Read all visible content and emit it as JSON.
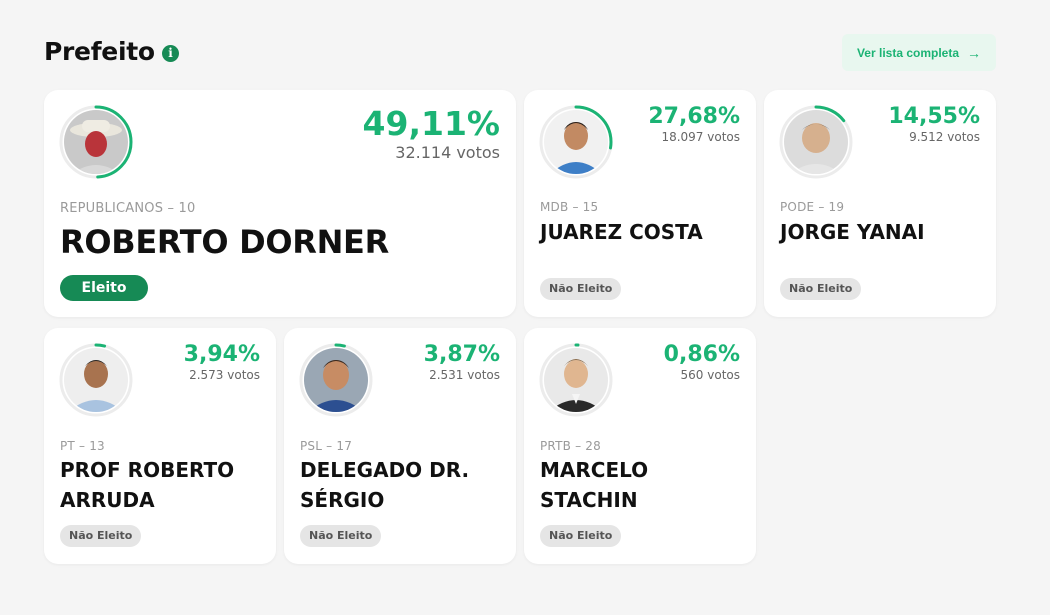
{
  "header": {
    "title": "Prefeito",
    "info_icon": "info-icon",
    "full_list_label": "Ver lista completa",
    "arrow_icon": "arrow-right-icon"
  },
  "colors": {
    "accent": "#1bb374",
    "elected": "#168a55",
    "not_elected_bg": "#e5e5e5"
  },
  "candidates": [
    {
      "party": "REPUBLICANOS – 10",
      "name": "ROBERTO DORNER",
      "percent": "49,11%",
      "votes": "32.114 votos",
      "status": "Eleito",
      "share": 0.4911
    },
    {
      "party": "MDB – 15",
      "name": "JUAREZ COSTA",
      "percent": "27,68%",
      "votes": "18.097 votos",
      "status": "Não Eleito",
      "share": 0.2768
    },
    {
      "party": "PODE – 19",
      "name": "JORGE YANAI",
      "percent": "14,55%",
      "votes": "9.512 votos",
      "status": "Não Eleito",
      "share": 0.1455
    },
    {
      "party": "PT – 13",
      "name": "PROF ROBERTO ARRUDA",
      "percent": "3,94%",
      "votes": "2.573 votos",
      "status": "Não Eleito",
      "share": 0.0394
    },
    {
      "party": "PSL – 17",
      "name": "DELEGADO DR. SÉRGIO",
      "percent": "3,87%",
      "votes": "2.531 votos",
      "status": "Não Eleito",
      "share": 0.0387
    },
    {
      "party": "PRTB – 28",
      "name": "MARCELO STACHIN",
      "percent": "0,86%",
      "votes": "560 votos",
      "status": "Não Eleito",
      "share": 0.0086
    }
  ]
}
